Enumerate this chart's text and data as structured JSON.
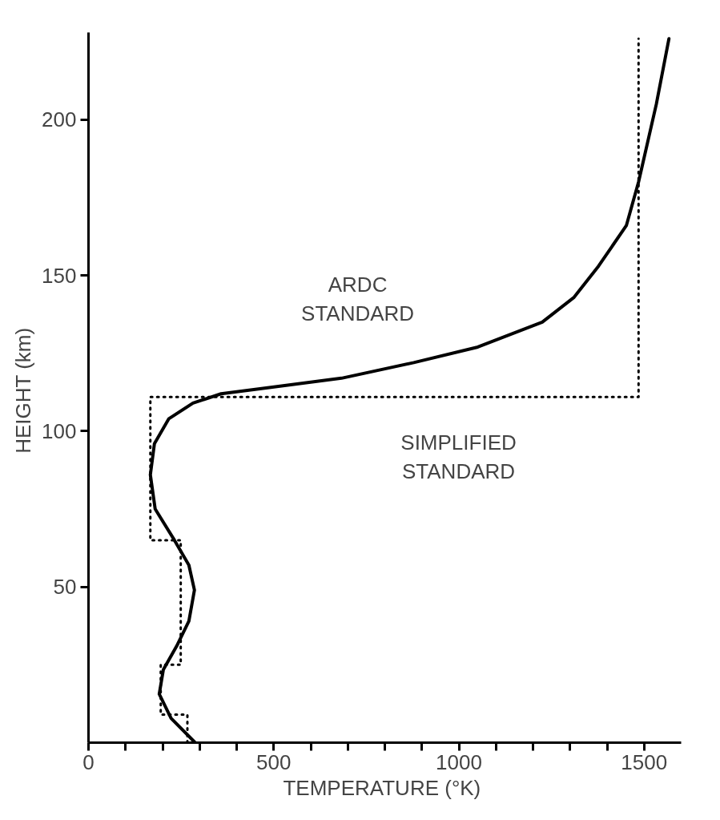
{
  "chart_data": {
    "type": "line",
    "xlabel": "TEMPERATURE  (°K)",
    "ylabel": "HEIGHT  (km)",
    "xlim": [
      0,
      1600
    ],
    "ylim": [
      0,
      228
    ],
    "xticks": [
      0,
      {
        "value": 100,
        "label": null
      },
      {
        "value": 200,
        "label": null
      },
      {
        "value": 300,
        "label": null
      },
      {
        "value": 400,
        "label": null
      },
      500,
      {
        "value": 600,
        "label": null
      },
      {
        "value": 700,
        "label": null
      },
      {
        "value": 800,
        "label": null
      },
      {
        "value": 900,
        "label": null
      },
      1000,
      {
        "value": 1100,
        "label": null
      },
      {
        "value": 1200,
        "label": null
      },
      {
        "value": 1300,
        "label": null
      },
      {
        "value": 1400,
        "label": null
      },
      1500
    ],
    "yticks": [
      50,
      100,
      150,
      200
    ],
    "grid": false,
    "series": [
      {
        "name": "ARDC\nSTANDARD",
        "color": "#000000",
        "line_style": "solid",
        "x": [
          288,
          223,
          191,
          202,
          238,
          271,
          286,
          271,
          232,
          180,
          167,
          178,
          217,
          282,
          358,
          488,
          683,
          878,
          1051,
          1225,
          1311,
          1377,
          1452,
          1485,
          1533,
          1567
        ],
        "values": [
          0,
          7.8,
          15.6,
          23.4,
          31,
          39,
          49,
          57,
          65,
          75,
          86,
          96,
          104,
          109,
          112,
          114,
          117,
          122,
          127,
          135,
          143,
          153,
          166,
          180,
          205,
          226
        ]
      },
      {
        "name": "SIMPLIFIED\nSTANDARD",
        "color": "#000000",
        "line_style": "dotted",
        "x": [
          267,
          267,
          195,
          195,
          249,
          249,
          167,
          167,
          1485,
          1485
        ],
        "values": [
          0,
          9,
          9,
          25,
          25,
          65,
          65,
          111,
          111,
          226
        ]
      }
    ]
  }
}
